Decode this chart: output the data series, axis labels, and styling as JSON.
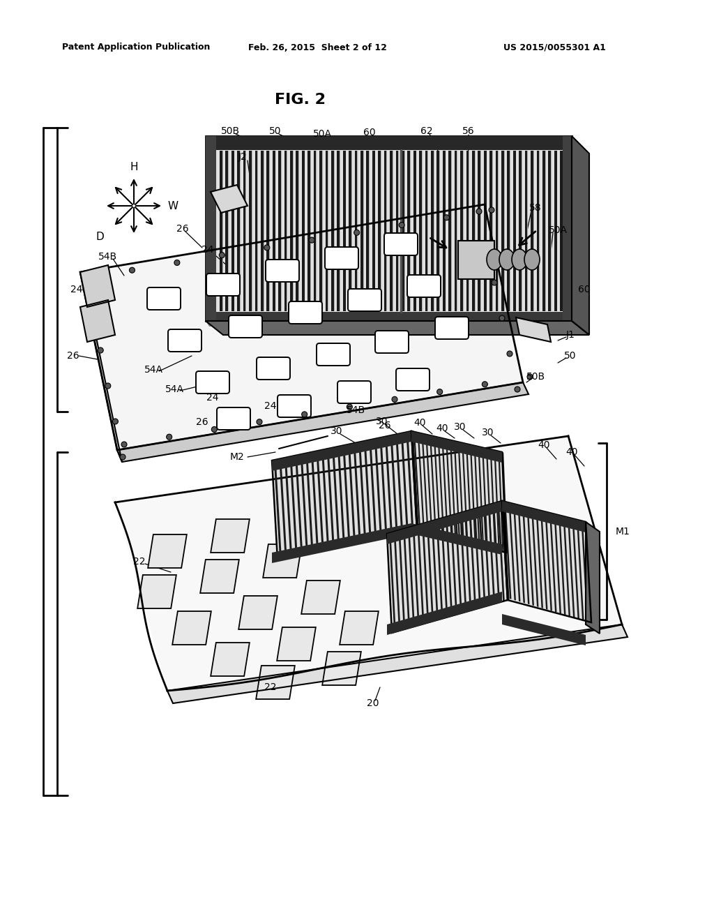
{
  "title": "FIG. 2",
  "header_left": "Patent Application Publication",
  "header_center": "Feb. 26, 2015  Sheet 2 of 12",
  "header_right": "US 2015/0055301 A1",
  "bg_color": "#ffffff",
  "fig_width": 10.24,
  "fig_height": 13.2,
  "dpi": 100
}
